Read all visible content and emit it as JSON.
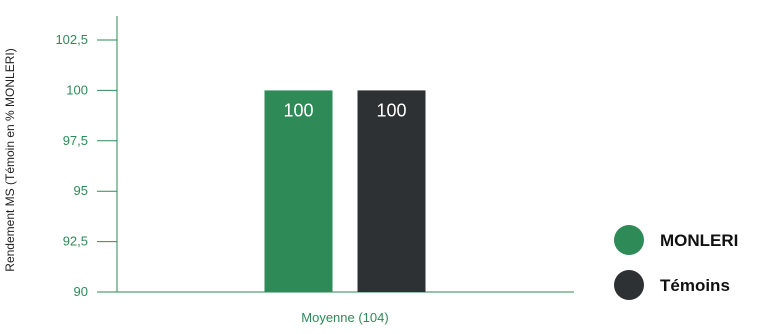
{
  "chart_data": {
    "type": "bar",
    "categories": [
      "Moyenne (104)"
    ],
    "series": [
      {
        "name": "MONLERI",
        "values": [
          100
        ],
        "color": "#2e8a57"
      },
      {
        "name": "Témoins",
        "values": [
          100
        ],
        "color": "#2e3134"
      }
    ],
    "ylabel": "Rendement MS (Témoin en % MONLERI)",
    "ylim": [
      90,
      102.5
    ],
    "yticks": [
      90,
      92.5,
      95,
      97.5,
      100,
      102.5
    ],
    "ytick_labels": [
      "90",
      "92,5",
      "95",
      "97,5",
      "100",
      "102,5"
    ],
    "data_labels": [
      "100",
      "100"
    ],
    "legend_position": "right",
    "grid": false,
    "axis_color": "#2e8a57"
  }
}
